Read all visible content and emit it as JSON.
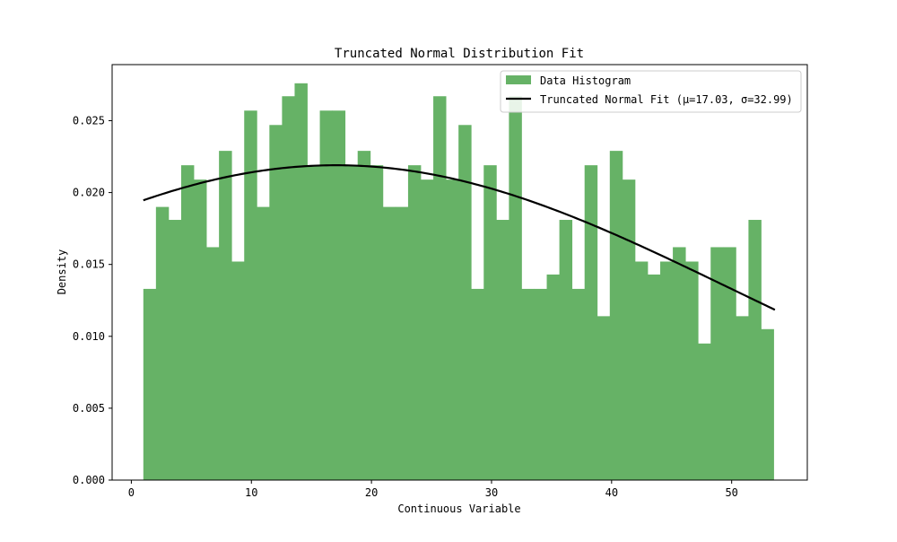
{
  "chart_data": {
    "type": "bar",
    "title": "Truncated Normal Distribution Fit",
    "xlabel": "Continuous Variable",
    "ylabel": "Density",
    "xlim": [
      -1.6,
      56.3
    ],
    "ylim": [
      0,
      0.0289
    ],
    "xticks": [
      0,
      10,
      20,
      30,
      40,
      50
    ],
    "yticks": [
      0.0,
      0.005,
      0.01,
      0.015,
      0.02,
      0.025
    ],
    "xtick_labels": [
      "0",
      "10",
      "20",
      "30",
      "40",
      "50"
    ],
    "ytick_labels": [
      "0.000",
      "0.005",
      "0.010",
      "0.015",
      "0.020",
      "0.025"
    ],
    "grid": false,
    "legend_position": "top-right",
    "bin_start": 1.0,
    "bin_width": 1.05,
    "series": [
      {
        "name": "Data Histogram",
        "kind": "histogram",
        "color": "#66b266",
        "values": [
          0.0133,
          0.019,
          0.0181,
          0.0219,
          0.0209,
          0.0162,
          0.0229,
          0.0152,
          0.0257,
          0.019,
          0.0247,
          0.0267,
          0.0276,
          0.0219,
          0.0257,
          0.0257,
          0.0219,
          0.0229,
          0.0219,
          0.019,
          0.019,
          0.0219,
          0.0209,
          0.0267,
          0.0209,
          0.0247,
          0.0133,
          0.0219,
          0.0181,
          0.0267,
          0.0133,
          0.0133,
          0.0143,
          0.0181,
          0.0133,
          0.0219,
          0.0114,
          0.0229,
          0.0209,
          0.0152,
          0.0143,
          0.0152,
          0.0162,
          0.0152,
          0.0095,
          0.0162,
          0.0162,
          0.0114,
          0.0181,
          0.0105
        ]
      },
      {
        "name": "Truncated Normal Fit (μ=17.03, σ=32.99)",
        "kind": "line",
        "color": "#000000",
        "mu": 17.03,
        "sigma": 32.99,
        "peak": 0.0219,
        "x_range": [
          1.0,
          53.6
        ]
      }
    ]
  }
}
